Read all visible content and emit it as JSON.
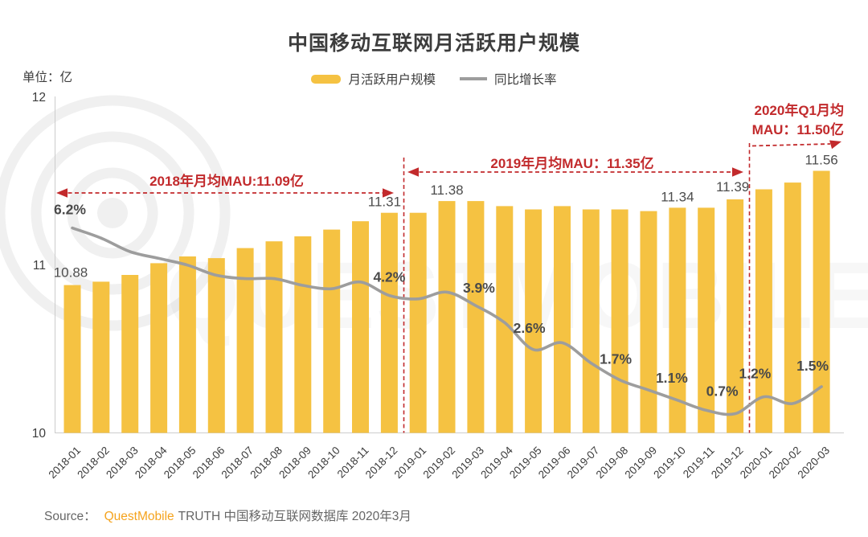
{
  "title": "中国移动互联网月活跃用户规模",
  "unit_label": "单位：亿",
  "legend": [
    {
      "label": "月活跃用户规模",
      "type": "bar",
      "color": "#F5C242"
    },
    {
      "label": "同比增长率",
      "type": "line",
      "color": "#9D9D9D"
    }
  ],
  "annotations": {
    "avg_2018": "2018年月均MAU:11.09亿",
    "avg_2019": "2019年月均MAU：11.35亿",
    "avg_2020q1": {
      "line1": "2020年Q1月均",
      "line2": "MAU：11.50亿"
    }
  },
  "source": {
    "label": "Source：",
    "brand": "QuestMobile",
    "rest": "TRUTH 中国移动互联网数据库 2020年3月"
  },
  "colors": {
    "bar": "#F5C242",
    "line": "#9D9D9D",
    "accent_red": "#C22A2C",
    "brand_orange": "#F5A31D",
    "axis": "#cccccc",
    "text": "#4a4a4a",
    "watermark": "#f0f0f0"
  },
  "chart_data": {
    "type": "bar+line",
    "categories": [
      "2018-01",
      "2018-02",
      "2018-03",
      "2018-04",
      "2018-05",
      "2018-06",
      "2018-07",
      "2018-08",
      "2018-09",
      "2018-10",
      "2018-11",
      "2018-12",
      "2019-01",
      "2019-02",
      "2019-03",
      "2019-04",
      "2019-05",
      "2019-06",
      "2019-07",
      "2019-08",
      "2019-09",
      "2019-10",
      "2019-11",
      "2019-12",
      "2020-01",
      "2020-02",
      "2020-03"
    ],
    "series": [
      {
        "name": "月活跃用户规模",
        "type": "bar",
        "unit": "亿",
        "values": [
          10.88,
          10.9,
          10.94,
          11.01,
          11.05,
          11.04,
          11.1,
          11.14,
          11.17,
          11.21,
          11.26,
          11.31,
          11.31,
          11.38,
          11.38,
          11.35,
          11.33,
          11.35,
          11.33,
          11.33,
          11.32,
          11.34,
          11.34,
          11.39,
          11.45,
          11.49,
          11.56
        ]
      },
      {
        "name": "同比增长率",
        "type": "line",
        "unit": "%",
        "values": [
          6.2,
          5.9,
          5.5,
          5.3,
          5.1,
          4.8,
          4.7,
          4.7,
          4.5,
          4.4,
          4.6,
          4.2,
          4.1,
          4.3,
          3.9,
          3.4,
          2.6,
          2.8,
          2.2,
          1.7,
          1.4,
          1.1,
          0.8,
          0.7,
          1.2,
          1.0,
          1.5
        ]
      }
    ],
    "bar_value_labels": {
      "0": "10.88",
      "11": "11.31",
      "13": "11.38",
      "21": "11.34",
      "23": "11.39",
      "26": "11.56"
    },
    "line_value_labels": {
      "0": "6.2%",
      "11": "4.2%",
      "14": "3.9%",
      "16": "2.6%",
      "19": "1.7%",
      "21": "1.1%",
      "23": "0.7%",
      "24": "1.2%",
      "26": "1.5%"
    },
    "y_axis": {
      "unit": "亿",
      "min": 10,
      "max": 12,
      "ticks": [
        "12",
        "11",
        "10"
      ]
    },
    "averages": {
      "2018": "11.09",
      "2019": "11.35",
      "2020Q1": "11.50"
    },
    "grid": false,
    "legend_position": "top",
    "watermark_text": "QUESTMOBILE"
  }
}
